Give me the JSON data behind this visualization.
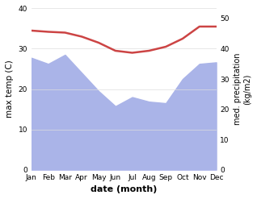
{
  "months": [
    "Jan",
    "Feb",
    "Mar",
    "Apr",
    "May",
    "Jun",
    "Jul",
    "Aug",
    "Sep",
    "Oct",
    "Nov",
    "Dec"
  ],
  "x": [
    0,
    1,
    2,
    3,
    4,
    5,
    6,
    7,
    8,
    9,
    10,
    11
  ],
  "temperature": [
    34.5,
    34.2,
    34.0,
    33.0,
    31.5,
    29.5,
    29.0,
    29.5,
    30.5,
    32.5,
    35.5,
    35.5
  ],
  "precipitation": [
    370,
    350,
    380,
    320,
    260,
    210,
    240,
    225,
    220,
    300,
    350,
    355
  ],
  "temp_color": "#cc4444",
  "precip_color": "#aab4e8",
  "xlabel": "date (month)",
  "ylabel_left": "max temp (C)",
  "ylabel_right": "med. precipitation\n(kg/m2)",
  "ylim_left": [
    0,
    40
  ],
  "ylim_right": [
    0,
    533
  ],
  "yticks_left": [
    0,
    10,
    20,
    30,
    40
  ],
  "yticks_right_labels": [
    "0",
    "10",
    "20",
    "30",
    "40",
    "50"
  ],
  "yticks_right_labels2": [
    "0",
    "10",
    "20",
    "30",
    "40",
    "50"
  ],
  "bg_color": "#ffffff",
  "fig_bg": "#ffffff"
}
